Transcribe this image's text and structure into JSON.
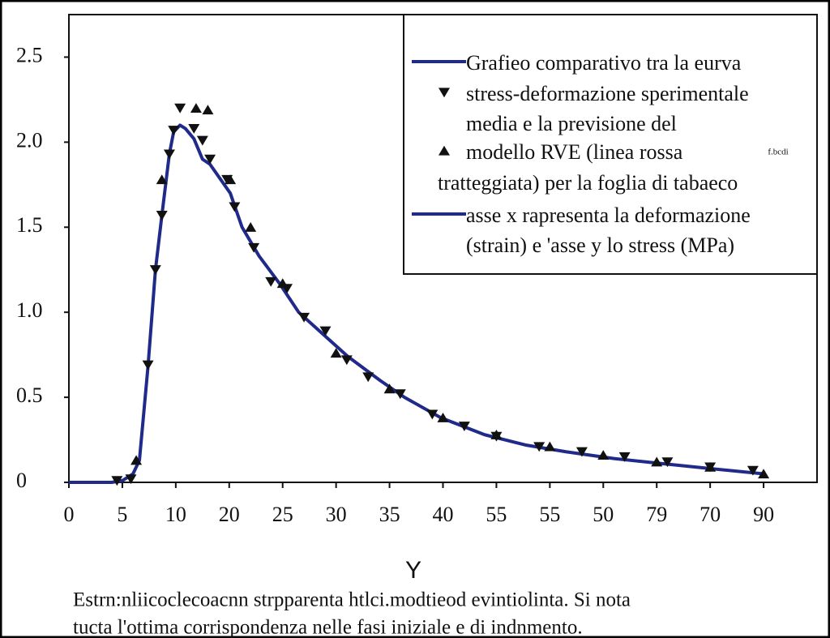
{
  "chart_data": {
    "type": "line",
    "xlabel": "Y",
    "xlim": [
      0,
      70
    ],
    "ylim": [
      0,
      2.75
    ],
    "xticks": [
      0,
      5,
      {
        "value": 10,
        "label": "10"
      },
      {
        "value": 15,
        "label": "20"
      },
      {
        "value": 20,
        "label": "25"
      },
      {
        "value": 25,
        "label": "30"
      },
      {
        "value": 30,
        "label": "35"
      },
      {
        "value": 35,
        "label": "40"
      },
      {
        "value": 40,
        "label": "55"
      },
      {
        "value": 45,
        "label": "55"
      },
      50,
      {
        "value": 55,
        "label": "79"
      },
      {
        "value": 60,
        "label": "70"
      },
      {
        "value": 65,
        "label": "90"
      }
    ],
    "yticks": [
      0,
      0.5,
      {
        "value": 1,
        "label": "1.0"
      },
      1.5,
      {
        "value": 2,
        "label": "2.0"
      },
      2.5
    ],
    "series": [
      {
        "name": "Grafieo comparativo tra la eurva",
        "color": "#1f2a8a",
        "marker": "none",
        "x": [
          0,
          4,
          5,
          6,
          6.6,
          7.4,
          8.1,
          8.7,
          9.4,
          9.8,
          10.4,
          10.9,
          11.7,
          12.5,
          13.2,
          15.1,
          16.2,
          17.8,
          19.7,
          21.5,
          23.8,
          26.1,
          29.1,
          31.4,
          34.8,
          38.9,
          42.7,
          46.5,
          51,
          55.5,
          60.2,
          65
        ],
        "values": [
          0,
          0,
          0.01,
          0.05,
          0.13,
          0.68,
          1.25,
          1.57,
          1.93,
          2.06,
          2.1,
          2.08,
          2.02,
          1.9,
          1.87,
          1.7,
          1.5,
          1.33,
          1.17,
          1.0,
          0.87,
          0.74,
          0.6,
          0.5,
          0.38,
          0.28,
          0.22,
          0.18,
          0.14,
          0.11,
          0.08,
          0.05
        ]
      },
      {
        "name": "stress-deformazione sperimentale",
        "color": "#111111",
        "marker": "triangle-down",
        "x": [
          4.5,
          5.8,
          7.4,
          8.1,
          8.7,
          9.4,
          9.8,
          10.4,
          11.7,
          12.5,
          13.2,
          14.8,
          15.5,
          17.3,
          18.9,
          20.4,
          22,
          24,
          26,
          28,
          31,
          34,
          37,
          40,
          44,
          48,
          52,
          56,
          60,
          64
        ],
        "values": [
          0.01,
          0.02,
          0.69,
          1.25,
          1.57,
          1.93,
          2.07,
          2.2,
          2.08,
          2.01,
          1.9,
          1.78,
          1.62,
          1.38,
          1.18,
          1.14,
          0.97,
          0.89,
          0.72,
          0.62,
          0.52,
          0.4,
          0.33,
          0.27,
          0.21,
          0.18,
          0.15,
          0.12,
          0.09,
          0.07
        ]
      },
      {
        "name": "modello RVE (linea rossa",
        "color": "#111111",
        "marker": "triangle-up",
        "x": [
          6.3,
          8.7,
          11.9,
          13,
          15.1,
          17,
          20,
          25,
          30,
          35,
          40,
          45,
          50,
          55,
          60,
          65
        ],
        "values": [
          0.13,
          1.78,
          2.2,
          2.19,
          1.78,
          1.5,
          1.17,
          0.76,
          0.55,
          0.38,
          0.28,
          0.21,
          0.16,
          0.12,
          0.09,
          0.05
        ]
      }
    ],
    "legend": {
      "position": "upper right",
      "entries": [
        {
          "text": "Grafieo comparativo tra la eurva",
          "symbol": "line"
        },
        {
          "text": "stress-deformazione sperimentale",
          "symbol": "triangle-down"
        },
        {
          "text": "media    e la previsione del",
          "symbol": "none"
        },
        {
          "text": "modello RVE (linea rossa",
          "symbol": "triangle-up"
        },
        {
          "text": "tratteggiata) per la foglia di tabaeco",
          "symbol": "none"
        },
        {
          "text": "asse x rapresenta la deformazione",
          "symbol": "line"
        },
        {
          "text": "(strain)  e 'asse y lo stress (MPa)",
          "symbol": "none"
        }
      ],
      "note": "f.bcdi"
    },
    "caption": [
      "Estrn:nliicoclecoacnn strpparenta  htlci.modtieod evintiolinta. Si nota",
      "tucta l'ottima corrispondenza nelle fasi iniziale e di indnmento."
    ]
  }
}
